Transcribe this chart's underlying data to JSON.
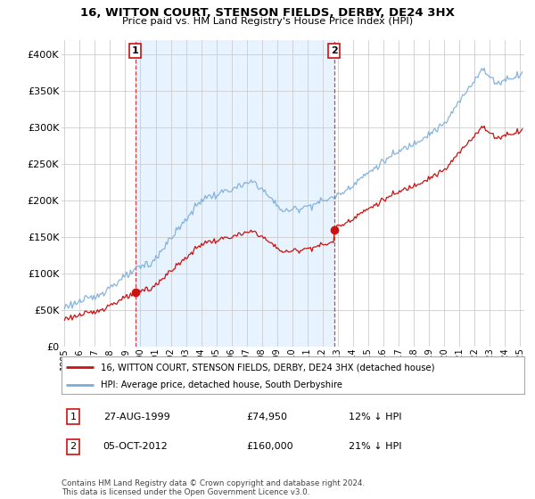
{
  "title": "16, WITTON COURT, STENSON FIELDS, DERBY, DE24 3HX",
  "subtitle": "Price paid vs. HM Land Registry's House Price Index (HPI)",
  "legend_line1": "16, WITTON COURT, STENSON FIELDS, DERBY, DE24 3HX (detached house)",
  "legend_line2": "HPI: Average price, detached house, South Derbyshire",
  "annotation1_label": "1",
  "annotation1_date": "27-AUG-1999",
  "annotation1_price": "£74,950",
  "annotation1_hpi": "12% ↓ HPI",
  "annotation2_label": "2",
  "annotation2_date": "05-OCT-2012",
  "annotation2_price": "£160,000",
  "annotation2_hpi": "21% ↓ HPI",
  "footnote": "Contains HM Land Registry data © Crown copyright and database right 2024.\nThis data is licensed under the Open Government Licence v3.0.",
  "hpi_color": "#7aacdb",
  "price_color": "#cc1111",
  "vline_color": "#cc1111",
  "shade_color": "#ddeeff",
  "background_color": "#ffffff",
  "grid_color": "#cccccc",
  "ylim": [
    0,
    420000
  ],
  "yticks": [
    0,
    50000,
    100000,
    150000,
    200000,
    250000,
    300000,
    350000,
    400000
  ],
  "sale1_year": 1999.65,
  "sale1_value": 74950,
  "sale2_year": 2012.76,
  "sale2_value": 160000
}
